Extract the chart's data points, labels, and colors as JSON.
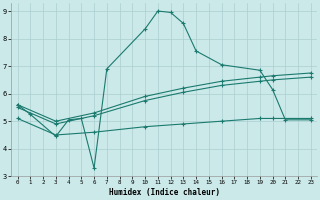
{
  "xlabel": "Humidex (Indice chaleur)",
  "bg_color": "#cce9ea",
  "grid_color": "#aacfd0",
  "line_color": "#1a7a6e",
  "xlim": [
    -0.5,
    23.5
  ],
  "ylim": [
    3,
    9.3
  ],
  "xticks": [
    0,
    1,
    2,
    3,
    4,
    5,
    6,
    7,
    8,
    9,
    10,
    11,
    12,
    13,
    14,
    15,
    16,
    17,
    18,
    19,
    20,
    21,
    22,
    23
  ],
  "yticks": [
    3,
    4,
    5,
    6,
    7,
    8,
    9
  ],
  "line1_x": [
    0,
    1,
    3,
    4,
    5,
    6,
    7,
    10,
    11,
    12,
    13,
    14,
    16,
    19,
    20,
    21,
    23
  ],
  "line1_y": [
    5.6,
    5.25,
    4.45,
    5.05,
    5.1,
    3.3,
    6.9,
    8.35,
    9.0,
    8.95,
    8.55,
    7.55,
    7.05,
    6.85,
    6.15,
    5.05,
    5.05
  ],
  "line2_x": [
    0,
    3,
    6,
    10,
    13,
    16,
    19,
    20,
    23
  ],
  "line2_y": [
    5.6,
    5.0,
    5.3,
    5.9,
    6.2,
    6.45,
    6.6,
    6.65,
    6.75
  ],
  "line3_x": [
    0,
    3,
    6,
    10,
    13,
    16,
    19,
    20,
    23
  ],
  "line3_y": [
    5.5,
    4.9,
    5.2,
    5.75,
    6.05,
    6.3,
    6.45,
    6.5,
    6.6
  ],
  "line4_x": [
    0,
    3,
    6,
    10,
    13,
    16,
    19,
    20,
    23
  ],
  "line4_y": [
    5.1,
    4.5,
    4.6,
    4.8,
    4.9,
    5.0,
    5.1,
    5.1,
    5.1
  ]
}
